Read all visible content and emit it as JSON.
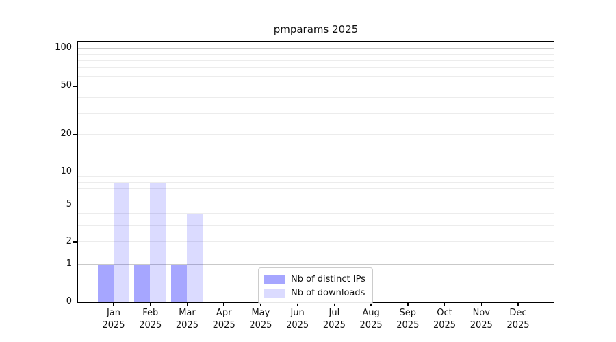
{
  "chart_data": {
    "type": "bar",
    "title": "pmparams 2025",
    "categories": [
      "Jan",
      "Feb",
      "Mar",
      "Apr",
      "May",
      "Jun",
      "Jul",
      "Aug",
      "Sep",
      "Oct",
      "Nov",
      "Dec"
    ],
    "x_year": "2025",
    "series": [
      {
        "name": "Nb of distinct IPs",
        "color": "#0000ff",
        "alpha": 0.35,
        "values": [
          1,
          1,
          1,
          0,
          0,
          0,
          0,
          0,
          0,
          0,
          0,
          0
        ]
      },
      {
        "name": "Nb of downloads",
        "color": "#0000ff",
        "alpha": 0.14,
        "values": [
          8,
          8,
          4,
          0,
          0,
          0,
          0,
          0,
          0,
          0,
          0,
          0
        ]
      }
    ],
    "yticks": [
      0,
      1,
      2,
      5,
      10,
      20,
      50,
      100
    ],
    "ylim": [
      0,
      113
    ],
    "xlabel": "",
    "ylabel": "",
    "scale": "symlog",
    "grid": "horizontal",
    "legend_position": "lower-center"
  }
}
